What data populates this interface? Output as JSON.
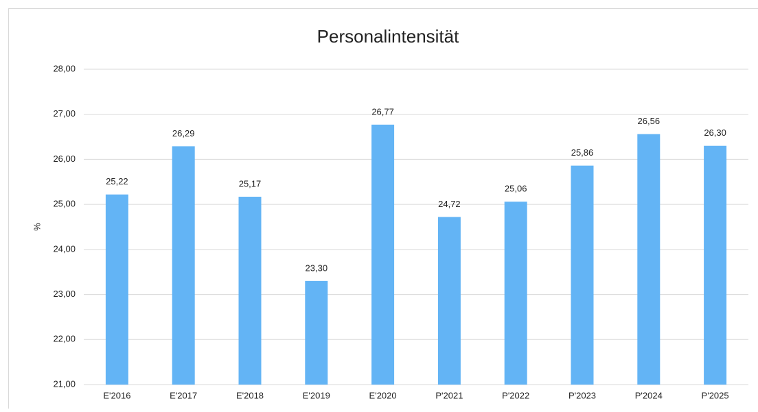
{
  "chart_data": {
    "type": "bar",
    "title": "Personalintensität",
    "y_label": "%",
    "categories": [
      "E'2016",
      "E'2017",
      "E'2018",
      "E'2019",
      "E'2020",
      "P'2021",
      "P'2022",
      "P'2023",
      "P'2024",
      "P'2025"
    ],
    "values": [
      25.22,
      26.29,
      25.17,
      23.3,
      26.77,
      24.72,
      25.06,
      25.86,
      26.56,
      26.3
    ],
    "value_labels": [
      "25,22",
      "26,29",
      "25,17",
      "23,30",
      "26,77",
      "24,72",
      "25,06",
      "25,86",
      "26,56",
      "26,30"
    ],
    "color": "#63b4f5",
    "ylim": [
      21,
      28
    ],
    "yticks": [
      {
        "value": 21,
        "label": "21,00"
      },
      {
        "value": 22,
        "label": "22,00"
      },
      {
        "value": 23,
        "label": "23,00"
      },
      {
        "value": 24,
        "label": "24,00"
      },
      {
        "value": 25,
        "label": "25,00"
      },
      {
        "value": 26,
        "label": "26,00"
      },
      {
        "value": 27,
        "label": "27,00"
      },
      {
        "value": 28,
        "label": "28,00"
      }
    ],
    "grid": true
  }
}
